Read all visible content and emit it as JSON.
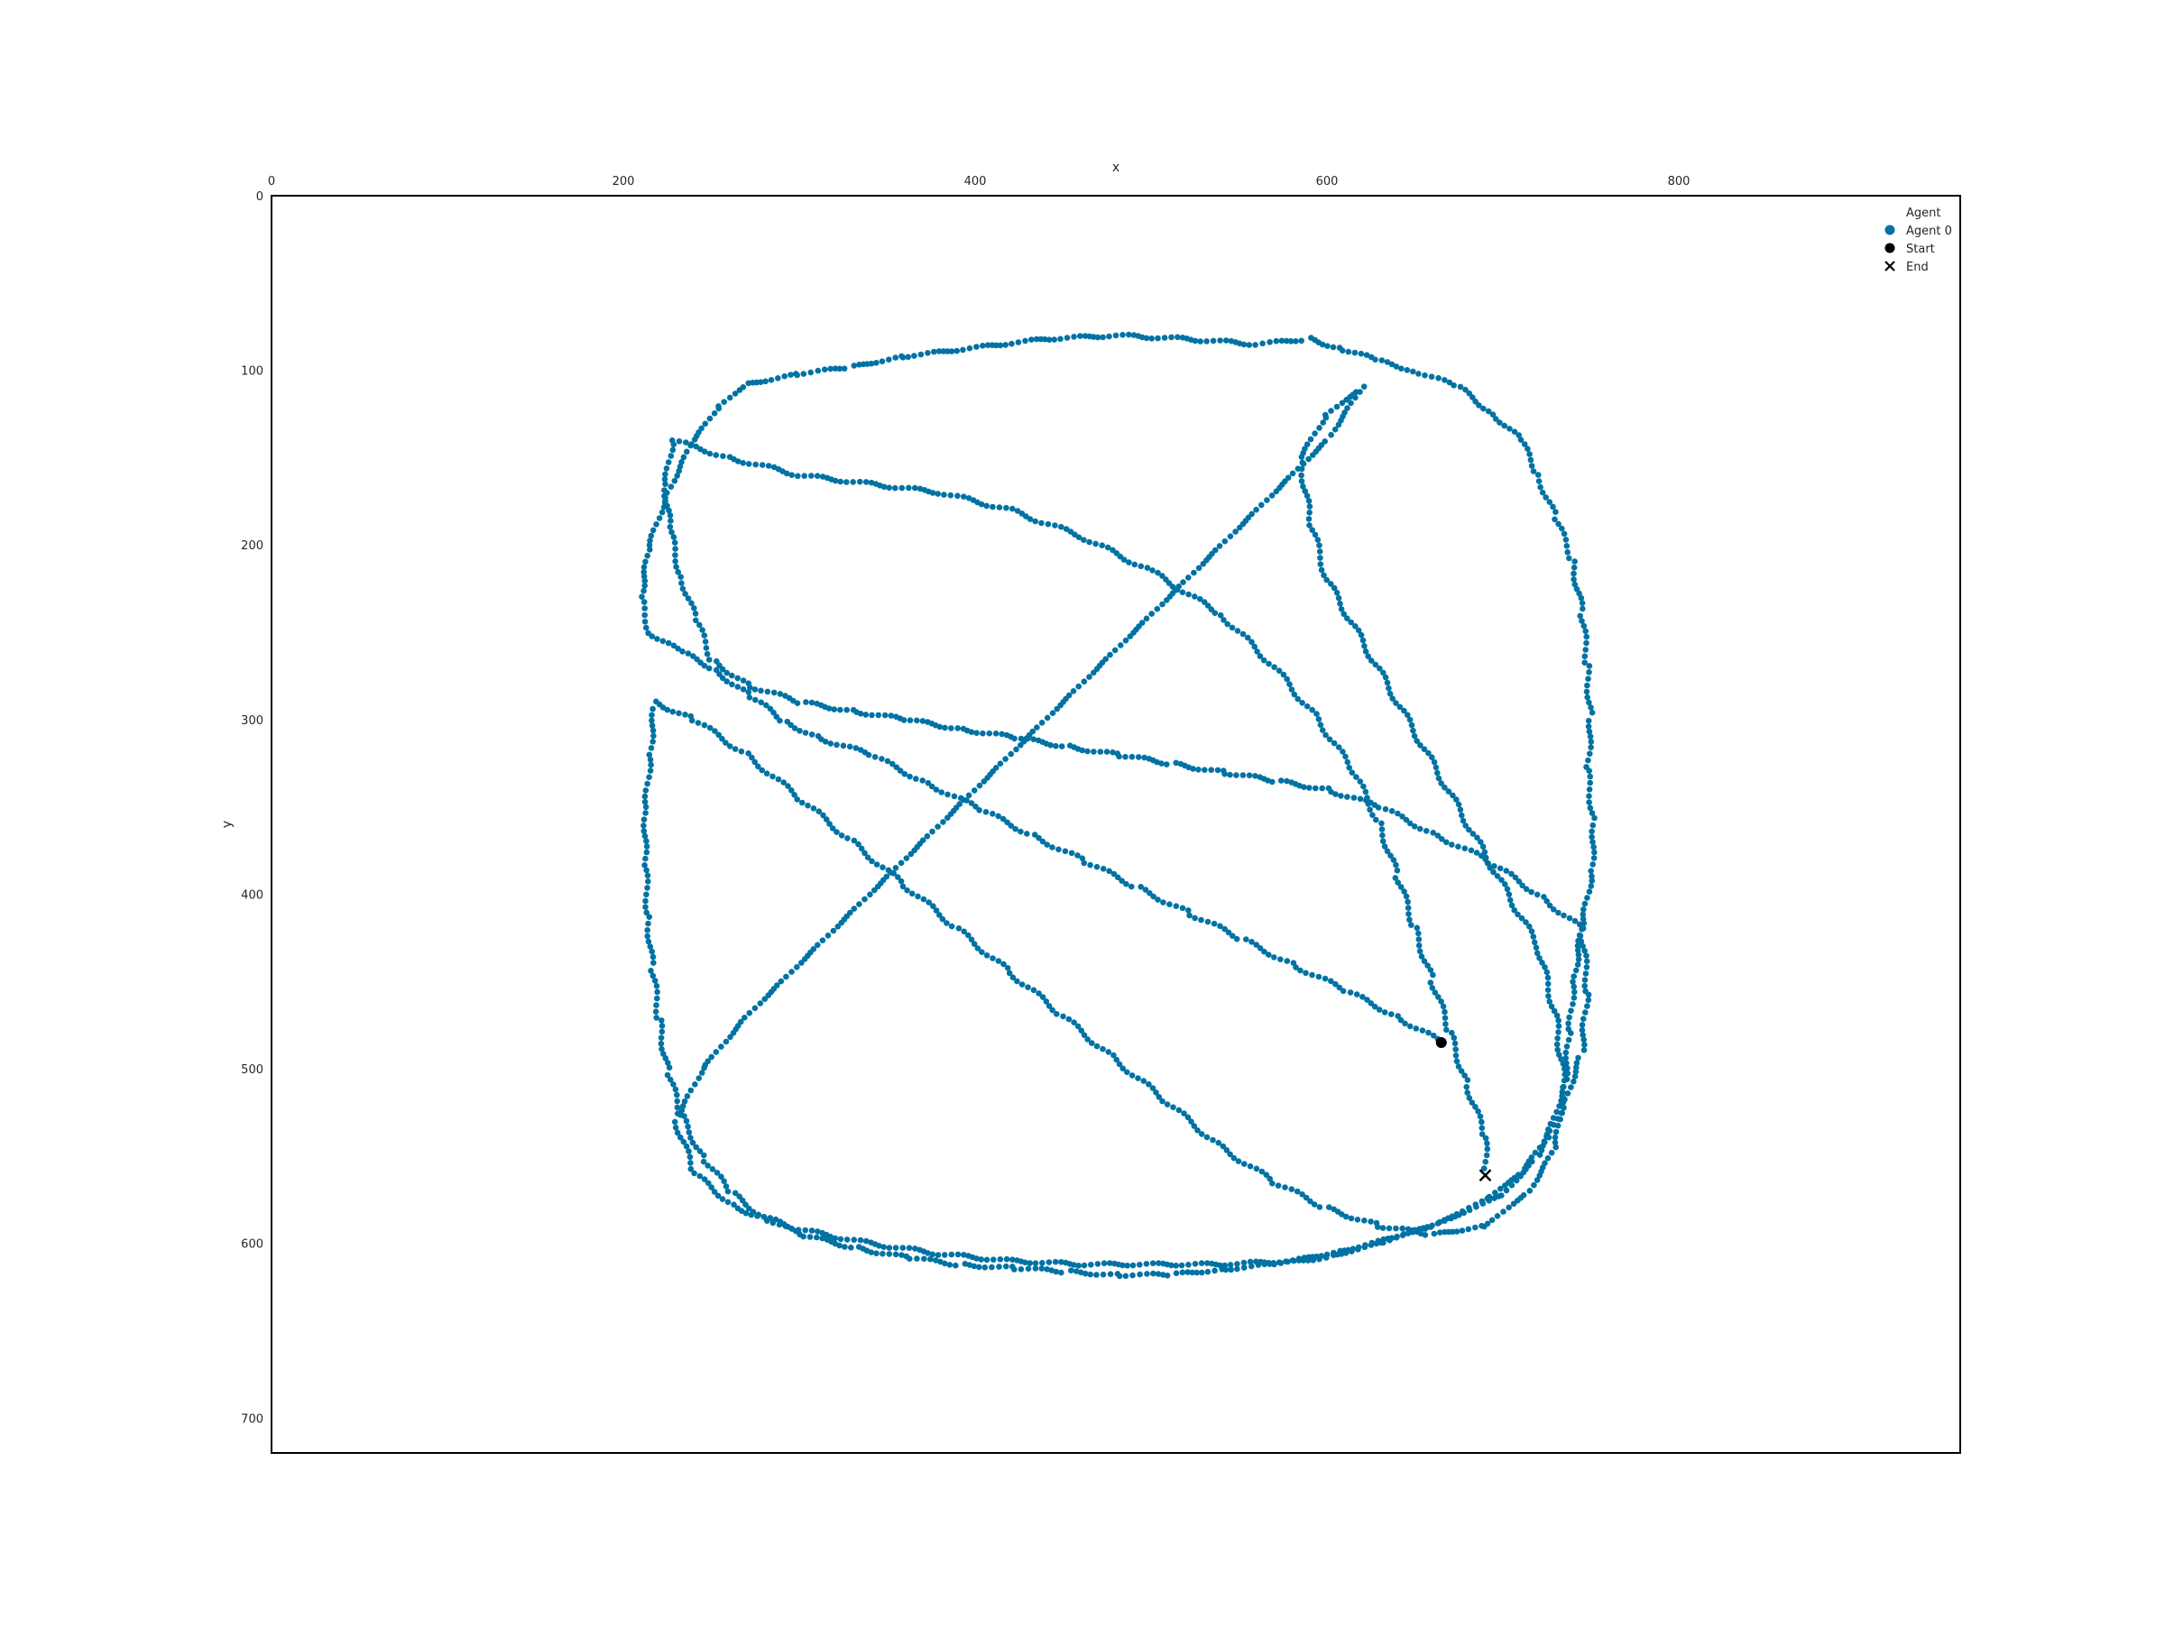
{
  "chart_data": {
    "type": "scatter",
    "title": "",
    "xlabel": "x",
    "ylabel": "y",
    "x_axis_position": "top",
    "y_axis_inverted": true,
    "xlim": [
      0,
      960
    ],
    "ylim": [
      720,
      0
    ],
    "xticks": [
      0,
      200,
      400,
      600,
      800
    ],
    "yticks": [
      0,
      100,
      200,
      300,
      400,
      500,
      600,
      700
    ],
    "grid": false,
    "legend": {
      "title": "Agent",
      "position": "top-right",
      "entries": [
        {
          "label": "Agent 0",
          "marker": "circle",
          "color": "#0072a3"
        },
        {
          "label": "Start",
          "marker": "circle",
          "color": "#000000"
        },
        {
          "label": "End",
          "marker": "x",
          "color": "#000000"
        }
      ]
    },
    "series": [
      {
        "name": "Agent 0",
        "color": "#0072a3",
        "description_points_are_sampled_trajectory": true,
        "path": [
          [
            665,
            485
          ],
          [
            640,
            470
          ],
          [
            610,
            455
          ],
          [
            580,
            440
          ],
          [
            550,
            425
          ],
          [
            520,
            410
          ],
          [
            490,
            395
          ],
          [
            460,
            380
          ],
          [
            430,
            365
          ],
          [
            400,
            350
          ],
          [
            370,
            335
          ],
          [
            340,
            320
          ],
          [
            310,
            310
          ],
          [
            290,
            300
          ],
          [
            270,
            285
          ],
          [
            250,
            270
          ],
          [
            230,
            260
          ],
          [
            215,
            250
          ],
          [
            210,
            230
          ],
          [
            215,
            200
          ],
          [
            225,
            170
          ],
          [
            240,
            140
          ],
          [
            255,
            120
          ],
          [
            270,
            108
          ],
          [
            300,
            102
          ],
          [
            330,
            98
          ],
          [
            360,
            92
          ],
          [
            400,
            87
          ],
          [
            440,
            82
          ],
          [
            480,
            80
          ],
          [
            520,
            82
          ],
          [
            560,
            85
          ],
          [
            590,
            82
          ],
          [
            610,
            88
          ],
          [
            630,
            95
          ],
          [
            650,
            100
          ],
          [
            675,
            110
          ],
          [
            695,
            125
          ],
          [
            710,
            140
          ],
          [
            720,
            160
          ],
          [
            730,
            185
          ],
          [
            740,
            210
          ],
          [
            745,
            240
          ],
          [
            748,
            270
          ],
          [
            750,
            300
          ],
          [
            748,
            330
          ],
          [
            752,
            360
          ],
          [
            750,
            390
          ],
          [
            745,
            420
          ],
          [
            740,
            450
          ],
          [
            738,
            480
          ],
          [
            735,
            510
          ],
          [
            725,
            540
          ],
          [
            710,
            560
          ],
          [
            690,
            575
          ],
          [
            660,
            590
          ],
          [
            630,
            600
          ],
          [
            600,
            608
          ],
          [
            570,
            612
          ],
          [
            540,
            615
          ],
          [
            510,
            618
          ],
          [
            480,
            618
          ],
          [
            450,
            616
          ],
          [
            420,
            614
          ],
          [
            390,
            612
          ],
          [
            360,
            608
          ],
          [
            330,
            602
          ],
          [
            300,
            595
          ],
          [
            280,
            585
          ],
          [
            260,
            570
          ],
          [
            245,
            550
          ],
          [
            232,
            525
          ],
          [
            225,
            500
          ],
          [
            220,
            470
          ],
          [
            216,
            440
          ],
          [
            214,
            410
          ],
          [
            212,
            380
          ],
          [
            213,
            350
          ],
          [
            215,
            320
          ],
          [
            218,
            290
          ],
          [
            240,
            300
          ],
          [
            270,
            320
          ],
          [
            300,
            345
          ],
          [
            330,
            370
          ],
          [
            360,
            395
          ],
          [
            390,
            420
          ],
          [
            420,
            445
          ],
          [
            450,
            470
          ],
          [
            480,
            495
          ],
          [
            510,
            520
          ],
          [
            540,
            545
          ],
          [
            570,
            565
          ],
          [
            600,
            580
          ],
          [
            630,
            590
          ],
          [
            660,
            595
          ],
          [
            690,
            590
          ],
          [
            715,
            570
          ],
          [
            730,
            545
          ],
          [
            735,
            510
          ],
          [
            730,
            470
          ],
          [
            720,
            430
          ],
          [
            700,
            395
          ],
          [
            680,
            360
          ],
          [
            660,
            325
          ],
          [
            640,
            290
          ],
          [
            620,
            255
          ],
          [
            600,
            220
          ],
          [
            590,
            185
          ],
          [
            585,
            150
          ],
          [
            600,
            125
          ],
          [
            620,
            110
          ],
          [
            600,
            140
          ],
          [
            570,
            170
          ],
          [
            540,
            200
          ],
          [
            510,
            230
          ],
          [
            480,
            260
          ],
          [
            450,
            290
          ],
          [
            420,
            320
          ],
          [
            390,
            350
          ],
          [
            360,
            380
          ],
          [
            330,
            410
          ],
          [
            300,
            440
          ],
          [
            270,
            470
          ],
          [
            245,
            500
          ],
          [
            230,
            530
          ],
          [
            240,
            560
          ],
          [
            265,
            580
          ],
          [
            300,
            592
          ],
          [
            340,
            600
          ],
          [
            380,
            606
          ],
          [
            420,
            610
          ],
          [
            460,
            612
          ],
          [
            500,
            612
          ],
          [
            540,
            612
          ],
          [
            580,
            610
          ],
          [
            610,
            604
          ],
          [
            640,
            596
          ],
          [
            670,
            586
          ],
          [
            700,
            572
          ],
          [
            720,
            550
          ],
          [
            735,
            520
          ],
          [
            745,
            490
          ],
          [
            748,
            455
          ],
          [
            745,
            420
          ],
          [
            720,
            400
          ],
          [
            690,
            380
          ],
          [
            660,
            365
          ],
          [
            630,
            350
          ],
          [
            600,
            340
          ],
          [
            570,
            335
          ],
          [
            540,
            330
          ],
          [
            510,
            325
          ],
          [
            480,
            320
          ],
          [
            450,
            315
          ],
          [
            420,
            310
          ],
          [
            390,
            305
          ],
          [
            360,
            300
          ],
          [
            330,
            295
          ],
          [
            300,
            290
          ],
          [
            270,
            280
          ],
          [
            250,
            265
          ],
          [
            240,
            240
          ],
          [
            232,
            215
          ],
          [
            226,
            190
          ],
          [
            224,
            165
          ],
          [
            228,
            140
          ],
          [
            260,
            150
          ],
          [
            300,
            160
          ],
          [
            340,
            165
          ],
          [
            380,
            170
          ],
          [
            420,
            180
          ],
          [
            460,
            195
          ],
          [
            500,
            215
          ],
          [
            540,
            240
          ],
          [
            570,
            270
          ],
          [
            595,
            300
          ],
          [
            615,
            330
          ],
          [
            630,
            360
          ],
          [
            640,
            390
          ],
          [
            650,
            420
          ],
          [
            660,
            450
          ],
          [
            670,
            480
          ],
          [
            680,
            510
          ],
          [
            690,
            540
          ],
          [
            690,
            560
          ]
        ]
      }
    ],
    "start": {
      "label": "Start",
      "x": 665,
      "y": 485
    },
    "end": {
      "label": "End",
      "x": 690,
      "y": 561
    }
  }
}
